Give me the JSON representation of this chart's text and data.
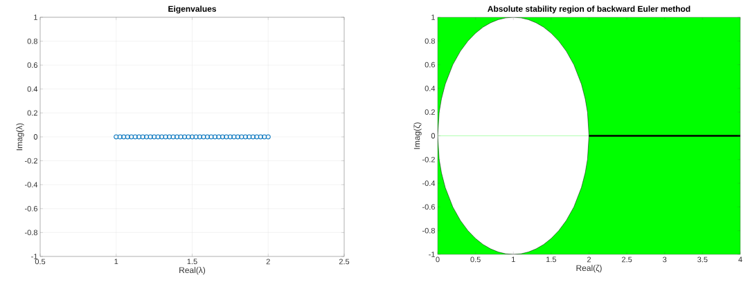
{
  "chart_data": [
    {
      "type": "scatter",
      "title": "Eigenvalues",
      "xlabel": "Real(λ)",
      "ylabel": "Imag(λ)",
      "xlim": [
        0.5,
        2.5
      ],
      "ylim": [
        -1,
        1
      ],
      "xticks": [
        0.5,
        1,
        1.5,
        2,
        2.5
      ],
      "yticks": [
        -1,
        -0.8,
        -0.6,
        -0.4,
        -0.2,
        0,
        0.2,
        0.4,
        0.6,
        0.8,
        1
      ],
      "grid": true,
      "marker": "circle",
      "series": [
        {
          "color": "#0072bd",
          "x": [
            1,
            1.025,
            1.05,
            1.075,
            1.1,
            1.125,
            1.15,
            1.175,
            1.2,
            1.225,
            1.25,
            1.275,
            1.3,
            1.325,
            1.35,
            1.375,
            1.4,
            1.425,
            1.45,
            1.475,
            1.5,
            1.525,
            1.55,
            1.575,
            1.6,
            1.625,
            1.65,
            1.675,
            1.7,
            1.725,
            1.75,
            1.775,
            1.8,
            1.825,
            1.85,
            1.875,
            1.9,
            1.925,
            1.95,
            1.975,
            2
          ],
          "values": [
            0,
            0,
            0,
            0,
            0,
            0,
            0,
            0,
            0,
            0,
            0,
            0,
            0,
            0,
            0,
            0,
            0,
            0,
            0,
            0,
            0,
            0,
            0,
            0,
            0,
            0,
            0,
            0,
            0,
            0,
            0,
            0,
            0,
            0,
            0,
            0,
            0,
            0,
            0,
            0,
            0
          ]
        }
      ]
    },
    {
      "type": "area",
      "title": "Absolute stability region of backward Euler method",
      "xlabel": "Real(ζ)",
      "ylabel": "Imag(ζ)",
      "xlim": [
        0,
        4
      ],
      "ylim": [
        -1,
        1
      ],
      "xticks": [
        0,
        0.5,
        1,
        1.5,
        2,
        2.5,
        3,
        3.5,
        4
      ],
      "yticks": [
        -1,
        -0.8,
        -0.6,
        -0.4,
        -0.2,
        0,
        0.2,
        0.4,
        0.6,
        0.8,
        1
      ],
      "grid": false,
      "bands": [
        {
          "axis": "x",
          "from": 0,
          "to": 4,
          "color": "#00ff00"
        }
      ],
      "series": [
        {
          "type": "area",
          "color": "#ffffff",
          "x": [
            0,
            0.02,
            0.05,
            0.1,
            0.2,
            0.3,
            0.4,
            0.5,
            0.6,
            0.7,
            0.8,
            0.9,
            1,
            1.1,
            1.2,
            1.3,
            1.4,
            1.5,
            1.6,
            1.7,
            1.8,
            1.9,
            1.95,
            1.98,
            2
          ],
          "values": [
            0,
            -0.199,
            -0.312,
            -0.436,
            -0.6,
            -0.714,
            -0.8,
            -0.866,
            -0.917,
            -0.954,
            -0.98,
            -0.995,
            -1,
            -0.995,
            -0.98,
            -0.954,
            -0.917,
            -0.866,
            -0.8,
            -0.714,
            -0.6,
            -0.436,
            -0.312,
            -0.199,
            0
          ]
        },
        {
          "type": "area",
          "color": "#ffffff",
          "x": [
            0,
            0.02,
            0.05,
            0.1,
            0.2,
            0.3,
            0.4,
            0.5,
            0.6,
            0.7,
            0.8,
            0.9,
            1,
            1.1,
            1.2,
            1.3,
            1.4,
            1.5,
            1.6,
            1.7,
            1.8,
            1.9,
            1.95,
            1.98,
            2
          ],
          "values": [
            0,
            0.199,
            0.312,
            0.436,
            0.6,
            0.714,
            0.8,
            0.866,
            0.917,
            0.954,
            0.98,
            0.995,
            1,
            0.995,
            0.98,
            0.954,
            0.917,
            0.866,
            0.8,
            0.714,
            0.6,
            0.436,
            0.312,
            0.199,
            0
          ]
        },
        {
          "type": "line",
          "color": "#000000",
          "x": [
            2,
            4
          ],
          "values": [
            0,
            0
          ]
        }
      ]
    }
  ]
}
